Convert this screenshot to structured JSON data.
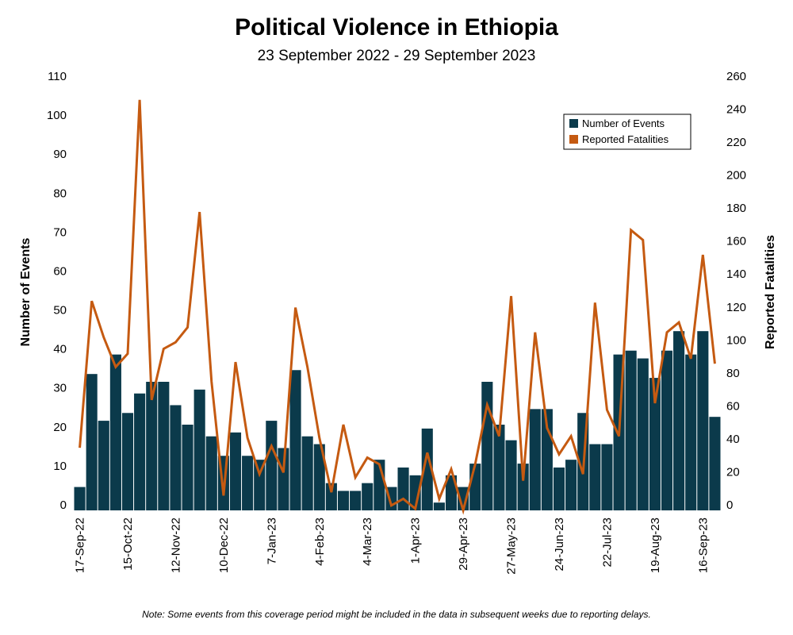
{
  "chart_data": {
    "type": "bar",
    "title": "Political Violence in Ethiopia",
    "subtitle": "23 September 2022 - 29 September 2023",
    "ylabel": "Number of Events",
    "y2label": "Reported Fatalities",
    "ylim": [
      0,
      110
    ],
    "y2lim": [
      0,
      260
    ],
    "yticks": [
      0,
      10,
      20,
      30,
      40,
      50,
      60,
      70,
      80,
      90,
      100,
      110
    ],
    "y2ticks": [
      0,
      20,
      40,
      60,
      80,
      100,
      120,
      140,
      160,
      180,
      200,
      220,
      240,
      260
    ],
    "xtick_labels": [
      "17-Sep-22",
      "15-Oct-22",
      "12-Nov-22",
      "10-Dec-22",
      "7-Jan-23",
      "4-Feb-23",
      "4-Mar-23",
      "1-Apr-23",
      "29-Apr-23",
      "27-May-23",
      "24-Jun-23",
      "22-Jul-23",
      "19-Aug-23",
      "16-Sep-23"
    ],
    "legend_position": "top-right",
    "colors": {
      "events": "#0b3a4b",
      "fatalities": "#c55a11"
    },
    "series": [
      {
        "name": "Number of Events",
        "type": "bar",
        "values": [
          6,
          35,
          23,
          40,
          25,
          30,
          33,
          33,
          27,
          22,
          31,
          19,
          14,
          20,
          14,
          13,
          23,
          16,
          36,
          19,
          17,
          7,
          5,
          5,
          7,
          13,
          6,
          11,
          9,
          21,
          2,
          9,
          6,
          12,
          33,
          22,
          18,
          12,
          26,
          26,
          11,
          13,
          25,
          17,
          17,
          40,
          41,
          39,
          34,
          41,
          46,
          40,
          46,
          24
        ]
      },
      {
        "name": "Reported Fatalities",
        "type": "line",
        "values": [
          38,
          127,
          105,
          87,
          95,
          249,
          67,
          98,
          102,
          111,
          181,
          78,
          9,
          90,
          44,
          22,
          39,
          23,
          123,
          87,
          44,
          11,
          52,
          20,
          32,
          28,
          3,
          7,
          1,
          35,
          7,
          25,
          0,
          28,
          64,
          45,
          130,
          18,
          108,
          50,
          34,
          45,
          22,
          126,
          61,
          45,
          170,
          164,
          65,
          108,
          114,
          92,
          155,
          89
        ]
      }
    ]
  },
  "note": "Note: Some events from this coverage period might be included in the data in subsequent weeks due to reporting delays."
}
